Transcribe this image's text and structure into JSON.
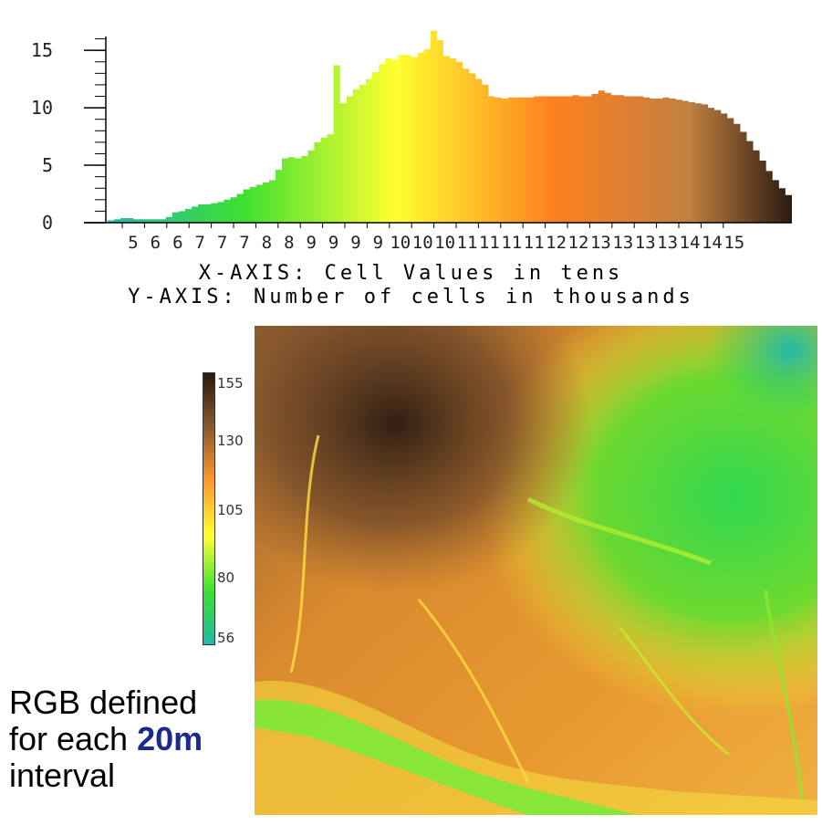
{
  "chart_data": [
    {
      "type": "bar",
      "title": "",
      "xlabel": "X-AXIS: Cell Values in tens",
      "ylabel": "Y-AXIS: Number of cells in thousands",
      "ylim": [
        0,
        17
      ],
      "yticks": [
        0,
        5,
        10,
        15
      ],
      "ytick_labels": [
        "0",
        "5",
        "10",
        "15"
      ],
      "xtick_labels": [
        "5",
        "6",
        "6",
        "7",
        "7",
        "7",
        "8",
        "8",
        "9",
        "9",
        "9",
        "9",
        "10",
        "10",
        "10",
        "11",
        "11",
        "11",
        "11",
        "12",
        "12",
        "13",
        "13",
        "13",
        "13",
        "14",
        "14",
        "15"
      ],
      "x_range": [
        43,
        157
      ],
      "gradient_colors": [
        "#22b8a8",
        "#3fe030",
        "#ffff30",
        "#ff8020",
        "#c08040",
        "#2a1a10"
      ],
      "values": [
        0.2,
        0.3,
        0.4,
        0.4,
        0.3,
        0.3,
        0.3,
        0.3,
        0.3,
        0.5,
        0.9,
        1.0,
        1.2,
        1.4,
        1.6,
        1.6,
        1.7,
        1.8,
        2.0,
        2.2,
        2.5,
        2.9,
        3.1,
        3.3,
        3.5,
        3.7,
        4.6,
        5.6,
        5.7,
        5.6,
        5.8,
        6.3,
        7.0,
        7.4,
        7.7,
        13.7,
        10.4,
        11.0,
        11.6,
        12.0,
        12.5,
        13.1,
        13.8,
        14.3,
        14.2,
        14.6,
        14.6,
        14.4,
        14.8,
        15.1,
        16.7,
        15.9,
        14.5,
        14.3,
        14.0,
        13.4,
        13.0,
        12.5,
        12.0,
        11.0,
        10.9,
        10.8,
        10.9,
        10.9,
        10.9,
        10.9,
        11.0,
        11.0,
        11.0,
        11.0,
        11.0,
        11.0,
        11.1,
        11.0,
        11.0,
        11.2,
        11.5,
        11.3,
        11.1,
        11.1,
        11.0,
        11.0,
        11.0,
        10.9,
        10.8,
        10.8,
        10.9,
        10.8,
        10.7,
        10.6,
        10.5,
        10.4,
        10.3,
        10.0,
        9.8,
        9.5,
        9.1,
        8.6,
        7.9,
        7.1,
        6.3,
        5.4,
        4.5,
        3.7,
        3.0,
        2.4
      ]
    },
    {
      "type": "heatmap",
      "title": "",
      "colorbar": {
        "ticks": [
          "155",
          "130",
          "105",
          "80",
          "56"
        ],
        "colors": [
          "#2a1a10",
          "#8a5a30",
          "#ff9a30",
          "#ffff30",
          "#3fe030",
          "#22b8a8"
        ]
      }
    }
  ],
  "captions": {
    "x_axis": "X-AXIS: Cell Values in tens",
    "y_axis": "Y-AXIS: Number of cells in thousands"
  },
  "legend": {
    "labels": [
      "155",
      "130",
      "105",
      "80",
      "56"
    ]
  },
  "note": {
    "line1": "RGB defined",
    "line2_prefix": "for each ",
    "line2_highlight": "20m",
    "line3": "interval"
  }
}
